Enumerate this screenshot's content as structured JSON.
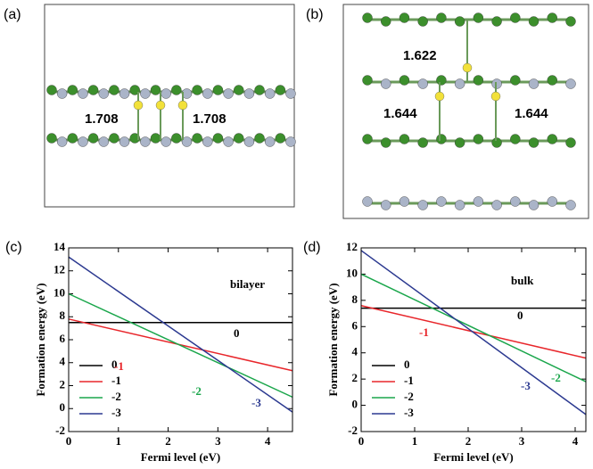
{
  "structures": [
    {
      "label": "(a)",
      "distances": [
        "1.708",
        "1.708"
      ]
    },
    {
      "label": "(b)",
      "distances": [
        "1.622",
        "1.644",
        "1.644"
      ]
    }
  ],
  "chart_data": [
    {
      "type": "line",
      "label": "(c)",
      "annotation": "bilayer",
      "x_label": "Fermi level (eV)",
      "y_label": "Formation energy (eV)",
      "x": [
        0,
        4.5
      ],
      "series": [
        {
          "name": "0",
          "color": "#000000",
          "values": [
            7.5,
            7.5
          ]
        },
        {
          "name": "-1",
          "color": "#e8262b",
          "values": [
            7.8,
            3.3
          ]
        },
        {
          "name": "-2",
          "color": "#1aa64b",
          "values": [
            10,
            1
          ]
        },
        {
          "name": "-3",
          "color": "#2b3990",
          "values": [
            13.2,
            -0.3
          ]
        }
      ],
      "xlim": [
        0,
        4.5
      ],
      "xticks": [
        0,
        1,
        2,
        3,
        4
      ],
      "ylim": [
        -2,
        14
      ],
      "yticks": [
        -2,
        0,
        2,
        4,
        6,
        8,
        10,
        12,
        14
      ],
      "legend": "lower left"
    },
    {
      "type": "line",
      "label": "(d)",
      "annotation": "bulk",
      "x_label": "Fermi level (eV)",
      "y_label": "Formation energy (eV)",
      "x": [
        0,
        4.2
      ],
      "series": [
        {
          "name": "0",
          "color": "#000000",
          "values": [
            7.4,
            7.4
          ]
        },
        {
          "name": "-1",
          "color": "#e8262b",
          "values": [
            7.6,
            3.6
          ]
        },
        {
          "name": "-2",
          "color": "#1aa64b",
          "values": [
            10,
            1.8
          ]
        },
        {
          "name": "-3",
          "color": "#2b3990",
          "values": [
            11.8,
            -0.7
          ]
        }
      ],
      "xlim": [
        0,
        4.2
      ],
      "xticks": [
        0,
        1,
        2,
        3,
        4
      ],
      "ylim": [
        -2,
        12
      ],
      "yticks": [
        -2,
        0,
        2,
        4,
        6,
        8,
        10,
        12
      ],
      "legend": "lower left"
    }
  ]
}
